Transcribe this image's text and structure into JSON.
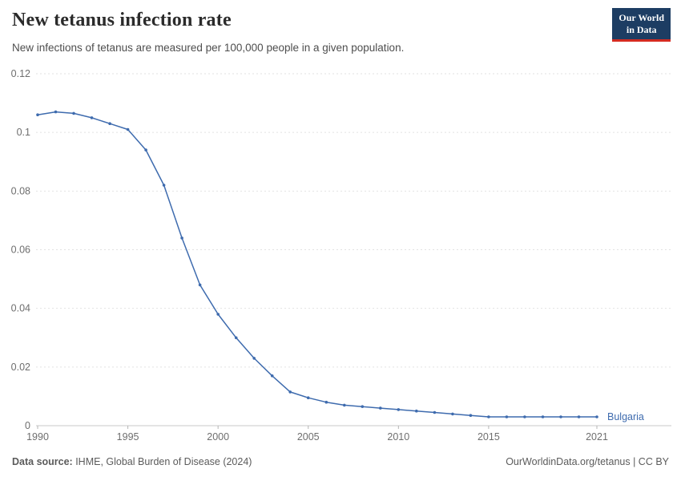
{
  "header": {
    "title": "New tetanus infection rate",
    "subtitle": "New infections of tetanus are measured per 100,000 people in a given population.",
    "logo": {
      "line1": "Our World",
      "line2": "in Data"
    }
  },
  "colors": {
    "logo_bg": "#1d3d63",
    "logo_accent": "#d42b21",
    "series_blue": "#3e6bae",
    "gridline": "#e2e2e2",
    "axis_line": "#c8c8c8",
    "tick_text": "#6e6e6e"
  },
  "chart_data": {
    "type": "line",
    "title": "New tetanus infection rate",
    "xlabel": "",
    "ylabel": "",
    "xlim": [
      1990,
      2021
    ],
    "ylim": [
      0,
      0.12
    ],
    "grid": "horizontal-dashed",
    "legend": "end-of-line-label",
    "yticks": [
      0,
      0.02,
      0.04,
      0.06,
      0.08,
      0.1,
      0.12
    ],
    "ytick_labels": [
      "0",
      "0.02",
      "0.04",
      "0.06",
      "0.08",
      "0.1",
      "0.12"
    ],
    "xticks": [
      1990,
      1995,
      2000,
      2005,
      2010,
      2015,
      2021
    ],
    "xtick_labels": [
      "1990",
      "1995",
      "2000",
      "2005",
      "2010",
      "2015",
      "2021"
    ],
    "series": [
      {
        "name": "Bulgaria",
        "color": "#3e6bae",
        "x": [
          1990,
          1991,
          1992,
          1993,
          1994,
          1995,
          1996,
          1997,
          1998,
          1999,
          2000,
          2001,
          2002,
          2003,
          2004,
          2005,
          2006,
          2007,
          2008,
          2009,
          2010,
          2011,
          2012,
          2013,
          2014,
          2015,
          2016,
          2017,
          2018,
          2019,
          2020,
          2021
        ],
        "values": [
          0.106,
          0.107,
          0.1065,
          0.105,
          0.103,
          0.101,
          0.094,
          0.082,
          0.064,
          0.048,
          0.038,
          0.03,
          0.023,
          0.017,
          0.0115,
          0.0095,
          0.008,
          0.007,
          0.0065,
          0.006,
          0.0055,
          0.005,
          0.0045,
          0.004,
          0.0035,
          0.003,
          0.003,
          0.003,
          0.003,
          0.003,
          0.003,
          0.003
        ]
      }
    ]
  },
  "footer": {
    "source_label": "Data source:",
    "source_text": " IHME, Global Burden of Disease (2024)",
    "right_text": "OurWorldinData.org/tetanus | CC BY"
  }
}
